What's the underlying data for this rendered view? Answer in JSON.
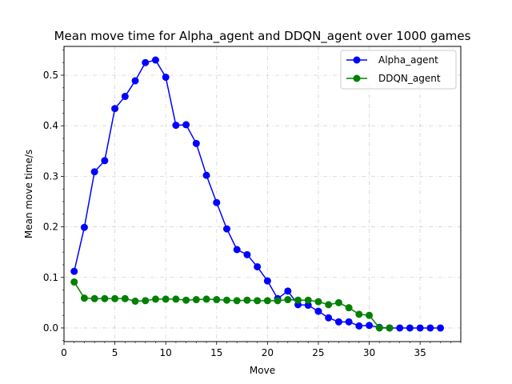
{
  "chart_data": {
    "type": "line",
    "title": "Mean move time for Alpha_agent and DDQN_agent over 1000 games",
    "xlabel": "Move",
    "ylabel": "Mean move time/s",
    "xlim": [
      0,
      39
    ],
    "ylim": [
      -0.027,
      0.557
    ],
    "xticks": [
      "0",
      "5",
      "10",
      "15",
      "20",
      "25",
      "30",
      "35"
    ],
    "yticks": [
      "0.0",
      "0.1",
      "0.2",
      "0.3",
      "0.4",
      "0.5"
    ],
    "grid": true,
    "legend": "top-right",
    "series": [
      {
        "name": "Alpha_agent",
        "color": "#0000ff",
        "x": [
          1,
          2,
          3,
          4,
          5,
          6,
          7,
          8,
          9,
          10,
          11,
          12,
          13,
          14,
          15,
          16,
          17,
          18,
          19,
          20,
          21,
          22,
          23,
          24,
          25,
          26,
          27,
          28,
          29,
          30,
          31,
          32,
          33,
          34,
          35,
          36,
          37
        ],
        "values": [
          0.112,
          0.199,
          0.309,
          0.331,
          0.434,
          0.458,
          0.489,
          0.525,
          0.53,
          0.496,
          0.401,
          0.402,
          0.365,
          0.302,
          0.248,
          0.196,
          0.155,
          0.145,
          0.121,
          0.093,
          0.058,
          0.073,
          0.046,
          0.045,
          0.033,
          0.02,
          0.012,
          0.012,
          0.004,
          0.005,
          0.001,
          0.0,
          0.0,
          0.0,
          0.0,
          0.0,
          0.0
        ]
      },
      {
        "name": "DDQN_agent",
        "color": "#008000",
        "x": [
          1,
          2,
          3,
          4,
          5,
          6,
          7,
          8,
          9,
          10,
          11,
          12,
          13,
          14,
          15,
          16,
          17,
          18,
          19,
          20,
          21,
          22,
          23,
          24,
          25,
          26,
          27,
          28,
          29,
          30,
          31,
          32
        ],
        "values": [
          0.091,
          0.059,
          0.058,
          0.058,
          0.058,
          0.058,
          0.053,
          0.054,
          0.057,
          0.057,
          0.057,
          0.055,
          0.056,
          0.057,
          0.056,
          0.055,
          0.054,
          0.055,
          0.054,
          0.054,
          0.054,
          0.056,
          0.055,
          0.055,
          0.052,
          0.046,
          0.05,
          0.04,
          0.027,
          0.025,
          0.0,
          0.0
        ]
      }
    ]
  }
}
